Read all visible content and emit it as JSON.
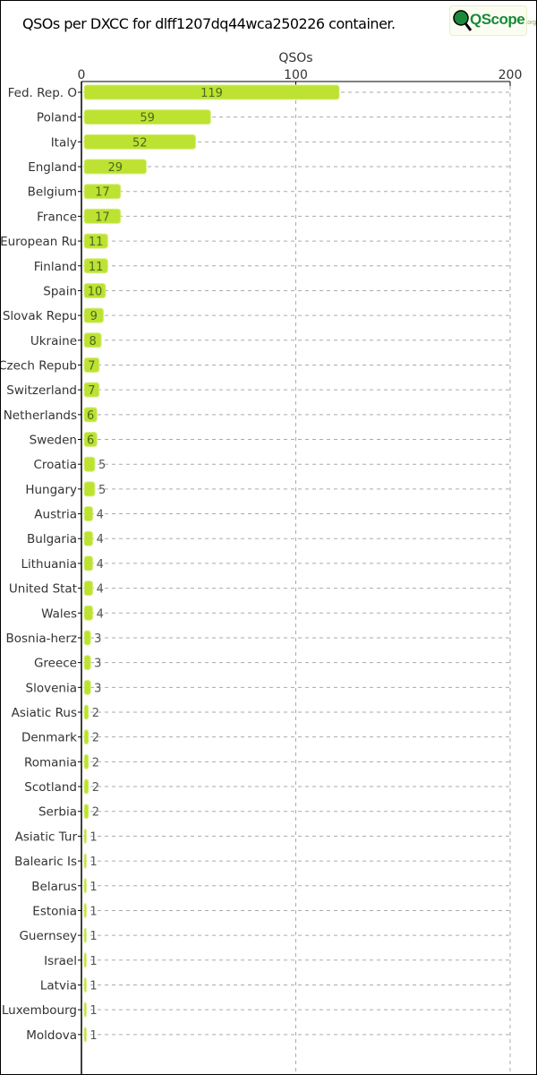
{
  "header": {
    "title": "QSOs per DXCC for dlff1207dq44wca250226 container.",
    "logo_text": "QScope",
    "logo_suffix": ".org"
  },
  "chart_data": {
    "type": "bar",
    "orientation": "horizontal",
    "xlabel": "QSOs",
    "xlim": [
      0,
      200
    ],
    "xticks": [
      0,
      100,
      200
    ],
    "grid": true,
    "bar_color": "#bde232",
    "categories": [
      "Fed. Rep. O",
      "Poland",
      "Italy",
      "England",
      "Belgium",
      "France",
      "European Ru",
      "Finland",
      "Spain",
      "Slovak Repu",
      "Ukraine",
      "Czech Repub",
      "Switzerland",
      "Netherlands",
      "Sweden",
      "Croatia",
      "Hungary",
      "Austria",
      "Bulgaria",
      "Lithuania",
      "United Stat",
      "Wales",
      "Bosnia-herz",
      "Greece",
      "Slovenia",
      "Asiatic Rus",
      "Denmark",
      "Romania",
      "Scotland",
      "Serbia",
      "Asiatic Tur",
      "Balearic Is",
      "Belarus",
      "Estonia",
      "Guernsey",
      "Israel",
      "Latvia",
      "Luxembourg",
      "Moldova"
    ],
    "values": [
      119,
      59,
      52,
      29,
      17,
      17,
      11,
      11,
      10,
      9,
      8,
      7,
      7,
      6,
      6,
      5,
      5,
      4,
      4,
      4,
      4,
      4,
      3,
      3,
      3,
      2,
      2,
      2,
      2,
      2,
      1,
      1,
      1,
      1,
      1,
      1,
      1,
      1,
      1
    ]
  }
}
